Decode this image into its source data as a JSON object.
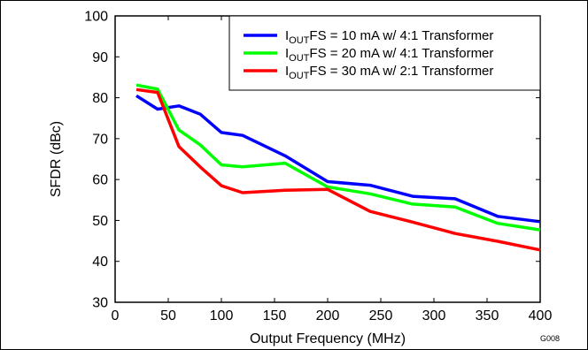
{
  "chart_data": {
    "type": "line",
    "xlabel": "Output Frequency (MHz)",
    "ylabel": "SFDR (dBc)",
    "xlim": [
      0,
      400
    ],
    "ylim": [
      30,
      100
    ],
    "xticks": [
      0,
      50,
      100,
      150,
      200,
      250,
      300,
      350,
      400
    ],
    "yticks": [
      30,
      40,
      50,
      60,
      70,
      80,
      90,
      100
    ],
    "grid": false,
    "legend_position": "top-right",
    "figure_id": "G008",
    "series": [
      {
        "name_parts": [
          "I",
          "OUT",
          "FS = 10 mA w/ 4:1 Transformer"
        ],
        "color": "#0000ff",
        "x": [
          20,
          40,
          60,
          80,
          100,
          120,
          160,
          200,
          240,
          280,
          320,
          360,
          400
        ],
        "y": [
          80.5,
          77.2,
          78,
          76,
          71.5,
          70.8,
          65.8,
          59.5,
          58.6,
          55.9,
          55.3,
          51,
          49.7
        ]
      },
      {
        "name_parts": [
          "I",
          "OUT",
          "FS = 20 mA w/ 4:1 Transformer"
        ],
        "color": "#00ff00",
        "x": [
          20,
          40,
          60,
          80,
          100,
          120,
          160,
          200,
          240,
          280,
          320,
          360,
          400
        ],
        "y": [
          83.1,
          82.1,
          72.1,
          68.5,
          63.6,
          63.1,
          64,
          58.2,
          56.5,
          54,
          53.3,
          49.3,
          47.7
        ]
      },
      {
        "name_parts": [
          "I",
          "OUT",
          "FS = 30 mA w/ 2:1 Transformer"
        ],
        "color": "#ff0000",
        "x": [
          20,
          40,
          60,
          80,
          100,
          120,
          160,
          200,
          240,
          280,
          320,
          360,
          400
        ],
        "y": [
          82,
          81.3,
          68.1,
          63.1,
          58.5,
          56.8,
          57.4,
          57.6,
          52.2,
          49.6,
          46.8,
          44.9,
          42.8
        ]
      }
    ]
  }
}
